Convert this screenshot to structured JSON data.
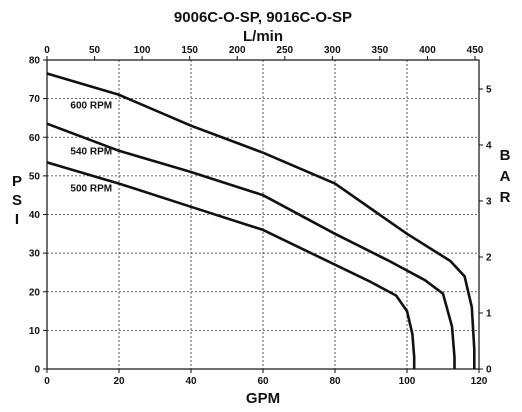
{
  "chart_data": {
    "type": "line",
    "title": "9006C-O-SP, 9016C-O-SP",
    "top_axis_label": "L/min",
    "xlabel": "GPM",
    "ylabel": "PSI",
    "right_axis_label": "BAR",
    "xlim": [
      0,
      120
    ],
    "ylim": [
      0,
      80
    ],
    "x_ticks": [
      "0",
      "20",
      "40",
      "60",
      "80",
      "100",
      "120"
    ],
    "y_ticks": [
      "0",
      "10",
      "20",
      "30",
      "40",
      "50",
      "60",
      "70",
      "80"
    ],
    "top_ticks": [
      "0",
      "50",
      "100",
      "150",
      "200",
      "250",
      "300",
      "350",
      "400",
      "450"
    ],
    "right_ticks": [
      "0",
      "1",
      "2",
      "3",
      "4",
      "5"
    ],
    "grid": true,
    "series": [
      {
        "name": "600 RPM",
        "x": [
          0,
          20,
          40,
          60,
          80,
          100,
          112,
          116,
          118,
          118.7,
          118.7
        ],
        "y": [
          76.5,
          71,
          63,
          56,
          48,
          35,
          28,
          24,
          16,
          5,
          0
        ]
      },
      {
        "name": "540 RPM",
        "x": [
          0,
          20,
          40,
          60,
          80,
          95,
          105,
          110,
          112.5,
          113.2,
          113.2
        ],
        "y": [
          63.5,
          56.5,
          51,
          45,
          35,
          28,
          23,
          19.5,
          11,
          3,
          0
        ]
      },
      {
        "name": "500 RPM",
        "x": [
          0,
          20,
          40,
          60,
          80,
          90,
          97,
          100,
          101.5,
          102,
          102
        ],
        "y": [
          53.5,
          48,
          42,
          36,
          27,
          22.5,
          19,
          15,
          9,
          3,
          0
        ]
      }
    ]
  }
}
